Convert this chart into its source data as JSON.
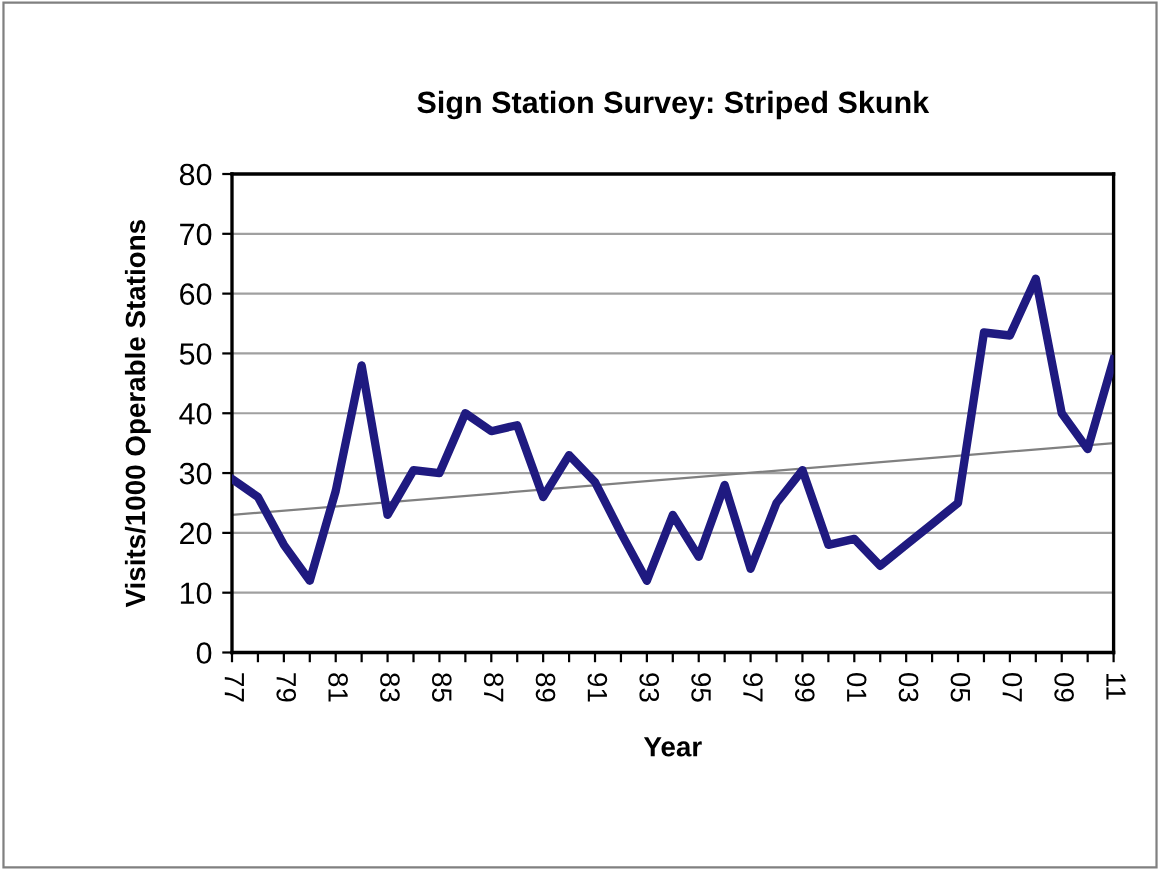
{
  "chart_data": {
    "type": "line",
    "title": "Sign Station Survey: Striped Skunk",
    "xlabel": "Year",
    "ylabel": "Visits/1000 Operable Stations",
    "x": [
      1977,
      1978,
      1979,
      1980,
      1981,
      1982,
      1983,
      1984,
      1985,
      1986,
      1987,
      1988,
      1989,
      1990,
      1991,
      1992,
      1993,
      1994,
      1995,
      1996,
      1997,
      1998,
      1999,
      2000,
      2001,
      2002,
      2003,
      2004,
      2005,
      2006,
      2007,
      2008,
      2009,
      2010,
      2011
    ],
    "series": [
      {
        "color": "#1f1a80",
        "values": [
          29,
          26,
          18,
          12,
          27,
          48,
          23,
          30.5,
          30,
          40,
          37,
          38,
          26,
          33,
          28.5,
          20,
          12,
          23,
          16,
          28,
          14,
          25,
          30.5,
          18,
          19,
          14.5,
          18,
          21.5,
          25,
          53.5,
          53,
          62.5,
          40,
          34,
          49
        ]
      },
      {
        "color": "#808080",
        "x": [
          1977,
          2011
        ],
        "values": [
          23,
          35
        ]
      }
    ],
    "xlim": [
      1977,
      2011
    ],
    "ylim": [
      0,
      80
    ],
    "yticks": [
      0,
      10,
      20,
      30,
      40,
      50,
      60,
      70,
      80
    ],
    "xticks": [
      {
        "value": 1977,
        "label": "77"
      },
      {
        "value": 1978,
        "label": null
      },
      {
        "value": 1979,
        "label": "79"
      },
      {
        "value": 1980,
        "label": null
      },
      {
        "value": 1981,
        "label": "81"
      },
      {
        "value": 1982,
        "label": null
      },
      {
        "value": 1983,
        "label": "83"
      },
      {
        "value": 1984,
        "label": null
      },
      {
        "value": 1985,
        "label": "85"
      },
      {
        "value": 1986,
        "label": null
      },
      {
        "value": 1987,
        "label": "87"
      },
      {
        "value": 1988,
        "label": null
      },
      {
        "value": 1989,
        "label": "89"
      },
      {
        "value": 1990,
        "label": null
      },
      {
        "value": 1991,
        "label": "91"
      },
      {
        "value": 1992,
        "label": null
      },
      {
        "value": 1993,
        "label": "93"
      },
      {
        "value": 1994,
        "label": null
      },
      {
        "value": 1995,
        "label": "95"
      },
      {
        "value": 1996,
        "label": null
      },
      {
        "value": 1997,
        "label": "97"
      },
      {
        "value": 1998,
        "label": null
      },
      {
        "value": 1999,
        "label": "99"
      },
      {
        "value": 2000,
        "label": null
      },
      {
        "value": 2001,
        "label": "01"
      },
      {
        "value": 2002,
        "label": null
      },
      {
        "value": 2003,
        "label": "03"
      },
      {
        "value": 2004,
        "label": null
      },
      {
        "value": 2005,
        "label": "05"
      },
      {
        "value": 2006,
        "label": null
      },
      {
        "value": 2007,
        "label": "07"
      },
      {
        "value": 2008,
        "label": null
      },
      {
        "value": 2009,
        "label": "09"
      },
      {
        "value": 2010,
        "label": null
      },
      {
        "value": 2011,
        "label": "11"
      }
    ],
    "grid": "y",
    "marker": "none",
    "line_style": "solid"
  }
}
